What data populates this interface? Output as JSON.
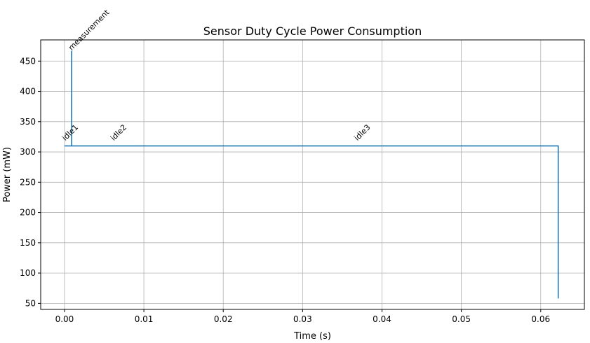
{
  "chart_data": {
    "type": "line",
    "title": "Sensor Duty Cycle Power Consumption",
    "xlabel": "Time (s)",
    "ylabel": "Power (mW)",
    "xlim": [
      -0.003,
      0.0655
    ],
    "ylim": [
      40,
      485
    ],
    "grid": true,
    "x_ticks": [
      0.0,
      0.01,
      0.02,
      0.03,
      0.04,
      0.05,
      0.06
    ],
    "x_tick_labels": [
      "0.00",
      "0.01",
      "0.02",
      "0.03",
      "0.04",
      "0.05",
      "0.06"
    ],
    "y_ticks": [
      50,
      100,
      150,
      200,
      250,
      300,
      350,
      400,
      450
    ],
    "y_tick_labels": [
      "50",
      "100",
      "150",
      "200",
      "250",
      "300",
      "350",
      "400",
      "450"
    ],
    "series": [
      {
        "color": "#1f77b4",
        "x": [
          0.0,
          0.0009,
          0.0009,
          0.0009,
          0.0622,
          0.0622
        ],
        "y": [
          310,
          310,
          467,
          310,
          310,
          58
        ]
      }
    ],
    "annotations": [
      {
        "text": "measurement",
        "x": 0.0009,
        "y": 467
      },
      {
        "text": "idle1",
        "x": 0.0001,
        "y": 318
      },
      {
        "text": "idle2",
        "x": 0.0062,
        "y": 318
      },
      {
        "text": "idle3",
        "x": 0.0369,
        "y": 318
      }
    ]
  }
}
